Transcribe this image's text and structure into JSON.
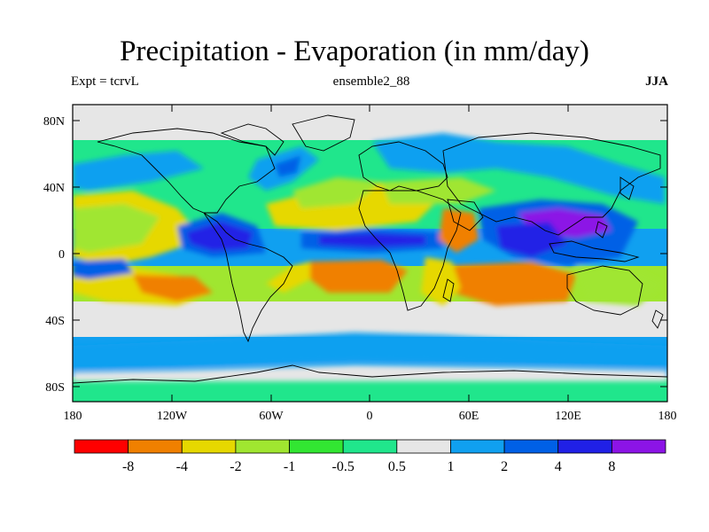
{
  "header": {
    "title": "Precipitation - Evaporation (in mm/day)",
    "left_subtitle": "Expt = tcrvL",
    "center_subtitle": "ensemble2_88",
    "right_subtitle": "JJA"
  },
  "map": {
    "lat_labels": [
      "80N",
      "40N",
      "0",
      "40S",
      "80S"
    ],
    "lon_labels": [
      "180",
      "120W",
      "60W",
      "0",
      "60E",
      "120E",
      "180"
    ]
  },
  "colorbar": {
    "colors": [
      "#ff0000",
      "#f08000",
      "#e6d800",
      "#a0e630",
      "#32e632",
      "#20e68c",
      "#e6e6e6",
      "#10a0f0",
      "#0060e6",
      "#2020e6",
      "#8c14e6"
    ],
    "labels": [
      "-8",
      "-4",
      "-2",
      "-1",
      "-0.5",
      "0.5",
      "1",
      "2",
      "4",
      "8"
    ]
  }
}
